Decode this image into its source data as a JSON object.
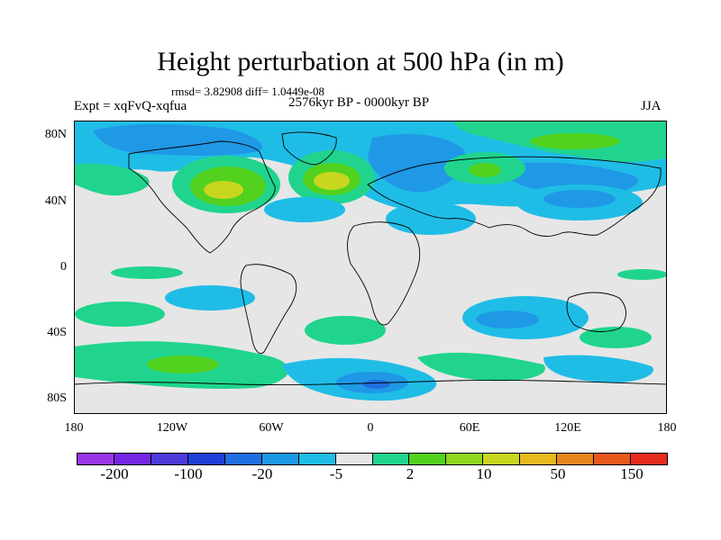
{
  "title": "Height perturbation at 500 hPa (in m)",
  "stats": "rmsd= 3.82908 diff= 1.0449e-08",
  "experiment": "Expt = xqFvQ-xqfua",
  "period": "2576kyr BP - 0000kyr BP",
  "season": "JJA",
  "y_axis_labels": [
    "80N",
    "40N",
    "0",
    "40S",
    "80S"
  ],
  "x_axis_labels": [
    "180",
    "120W",
    "60W",
    "0",
    "60E",
    "120E",
    "180"
  ],
  "colorbar": {
    "colors": [
      "#9a35e6",
      "#7327e3",
      "#4d3ad8",
      "#1f3fd6",
      "#1f6fe0",
      "#1f98e6",
      "#1fbde6",
      "#e6e6e6",
      "#20d48e",
      "#52d11f",
      "#8fd61f",
      "#c8d61f",
      "#e6b91f",
      "#e6861f",
      "#e6591f",
      "#e62b1f"
    ],
    "tick_labels": [
      "-200",
      "-100",
      "-20",
      "-5",
      "2",
      "10",
      "50",
      "150"
    ]
  },
  "colors": {
    "neutral": "#e6e6e6",
    "light_blue": "#1fbde6",
    "mid_blue": "#1f98e6",
    "blue": "#1f6fe0",
    "aqua_green": "#20d48e",
    "green": "#52d11f",
    "yellow_green": "#c8d61f"
  }
}
